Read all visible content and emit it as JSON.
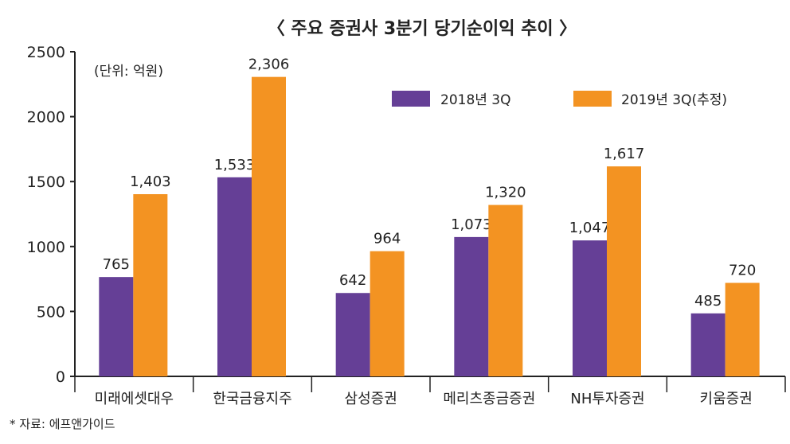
{
  "chart_data": {
    "type": "bar",
    "title": "〈 주요 증권사 3분기 당기순이익 추이 〉",
    "unit_note": "(단위: 억원)",
    "source": "* 자료: 에프앤가이드",
    "categories": [
      "미래에셋대우",
      "한국금융지주",
      "삼성증권",
      "메리츠종금증권",
      "NH투자증권",
      "키움증권"
    ],
    "series": [
      {
        "name": "2018년 3Q",
        "color": "#653f96",
        "values": [
          765,
          1533,
          642,
          1073,
          1047,
          485
        ],
        "labels": [
          "765",
          "1,533",
          "642",
          "1,073",
          "1,047",
          "485"
        ]
      },
      {
        "name": "2019년 3Q(추정)",
        "color": "#f39322",
        "values": [
          1403,
          2306,
          964,
          1320,
          1617,
          720
        ],
        "labels": [
          "1,403",
          "2,306",
          "964",
          "1,320",
          "1,617",
          "720"
        ]
      }
    ],
    "ylim": [
      0,
      2500
    ],
    "yticks": [
      "0",
      "500",
      "1000",
      "1500",
      "2000",
      "2500"
    ],
    "legend_position": "top-right",
    "grid": false
  }
}
